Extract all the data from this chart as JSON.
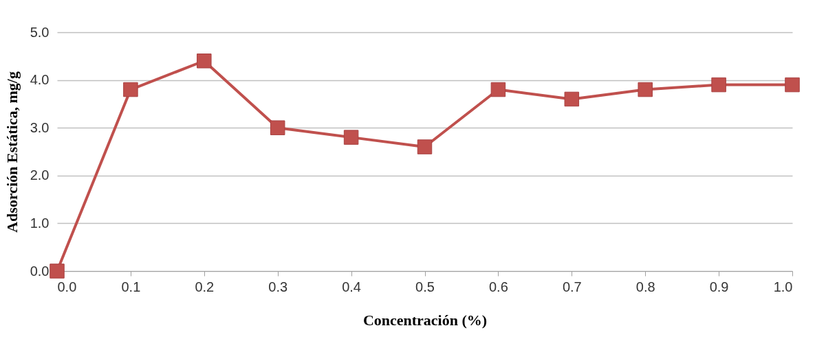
{
  "chart_data": {
    "type": "line",
    "xlabel": "Concentración (%)",
    "ylabel": "Adsorción  Estática, mg/g",
    "x": [
      0,
      0.1,
      0.2,
      0.3,
      0.4,
      0.5,
      0.6,
      0.7,
      0.8,
      0.9,
      1.0
    ],
    "series": [
      {
        "color": "#c0504d",
        "values": [
          0,
          3.8,
          4.4,
          3.0,
          2.8,
          2.6,
          3.8,
          3.6,
          3.8,
          3.9,
          3.9
        ]
      }
    ],
    "xlim": [
      0,
      1
    ],
    "xticks": [
      {
        "value": 0,
        "label": "0.0"
      },
      0.1,
      0.2,
      0.3,
      0.4,
      0.5,
      0.6,
      0.7,
      0.8,
      0.9,
      {
        "value": 1,
        "label": "1.0"
      }
    ],
    "ylim": [
      0,
      5
    ],
    "yticks": [
      {
        "value": 0,
        "label": "0.0"
      },
      {
        "value": 1,
        "label": "1.0"
      },
      {
        "value": 2,
        "label": "2.0"
      },
      {
        "value": 3,
        "label": "3.0"
      },
      {
        "value": 4,
        "label": "4.0"
      },
      {
        "value": 5,
        "label": "5.0"
      }
    ],
    "grid": "y",
    "marker": "square",
    "line_style": "solid"
  }
}
